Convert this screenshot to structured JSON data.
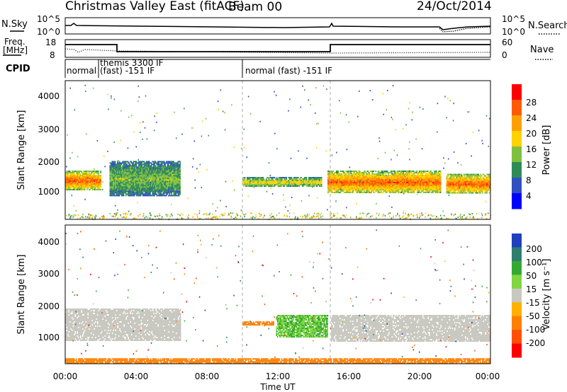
{
  "header": {
    "title": "Christmas Valley East (fitACF)",
    "beam": "Beam 00",
    "date": "24/Oct/2014"
  },
  "noise_panel": {
    "left_label": "N.Sky",
    "left_ticks": [
      "10^5",
      "10^0"
    ],
    "right_ticks": [
      "10^5",
      "10^0"
    ],
    "right_label": "N.Search"
  },
  "freq_panel": {
    "left_label_1": "Freq.",
    "left_label_2": "[MHz]",
    "left_ticks": [
      "18",
      "8"
    ],
    "right_ticks": [
      "60",
      "0"
    ],
    "right_label": "Nave"
  },
  "cpid_panel": {
    "label": "CPID",
    "segments": [
      {
        "start_hour": 0.0,
        "text_1": "normal",
        "text_2": ""
      },
      {
        "start_hour": 1.85,
        "text_1": "themis 3300 IF",
        "text_2": "(fast) -151 IF"
      },
      {
        "start_hour": 10.0,
        "text_1": "normal (fast) -151 IF",
        "text_2": ""
      }
    ]
  },
  "power_panel": {
    "ylabel": "Slant Range [km]",
    "yticks": [
      "4000",
      "3000",
      "2000",
      "1000"
    ],
    "colorbar_label": "Power [dB]",
    "colorbar_ticks": [
      "28",
      "24",
      "20",
      "16",
      "12",
      "8",
      "4"
    ],
    "colorbar_colors": [
      "#ff0000",
      "#ff5a00",
      "#ffa000",
      "#ffd200",
      "#80c040",
      "#2e8b57",
      "#3050c0",
      "#0000ff"
    ]
  },
  "velocity_panel": {
    "ylabel": "Slant Range [km]",
    "yticks": [
      "4000",
      "3000",
      "2000",
      "1000"
    ],
    "colorbar_label": "Velocity [m s⁻¹]",
    "colorbar_ticks": [
      "200",
      "100",
      "50",
      "15",
      "-15",
      "-50",
      "-100",
      "-200"
    ],
    "colorbar_colors": [
      "#2040c0",
      "#2e7d6e",
      "#34a834",
      "#7fd640",
      "#c8c8c0",
      "#ffb000",
      "#ff8000",
      "#ff5000",
      "#ff0000"
    ]
  },
  "xaxis": {
    "label": "Time UT",
    "ticks": [
      "00:00",
      "04:00",
      "08:00",
      "12:00",
      "16:00",
      "20:00",
      "00:00"
    ]
  },
  "chart_data": {
    "type": "heatmap",
    "x_range_hours": [
      0,
      24
    ],
    "y_range_km": [
      180,
      4500
    ],
    "power_bands": [
      {
        "start_hour": 0.0,
        "end_hour": 2.0,
        "range_km": [
          1100,
          1700
        ],
        "power_db": 24
      },
      {
        "start_hour": 2.5,
        "end_hour": 6.5,
        "range_km": [
          900,
          2000
        ],
        "power_db": 12
      },
      {
        "start_hour": 10.0,
        "end_hour": 14.5,
        "range_km": [
          1200,
          1500
        ],
        "power_db": 16
      },
      {
        "start_hour": 14.8,
        "end_hour": 21.2,
        "range_km": [
          1000,
          1700
        ],
        "power_db": 24
      },
      {
        "start_hour": 21.5,
        "end_hour": 24.0,
        "range_km": [
          1000,
          1600
        ],
        "power_db": 24
      }
    ],
    "velocity_bands": [
      {
        "start_hour": 0.0,
        "end_hour": 6.5,
        "range_km": [
          900,
          1900
        ],
        "velocity_ms": 0
      },
      {
        "start_hour": 10.0,
        "end_hour": 11.8,
        "range_km": [
          1400,
          1500
        ],
        "velocity_ms": -60
      },
      {
        "start_hour": 11.9,
        "end_hour": 14.8,
        "range_km": [
          1000,
          1700
        ],
        "velocity_ms": 30
      },
      {
        "start_hour": 15.0,
        "end_hour": 24.0,
        "range_km": [
          900,
          1700
        ],
        "velocity_ms": 0
      },
      {
        "start_hour": 0.0,
        "end_hour": 24.0,
        "range_km": [
          180,
          350
        ],
        "velocity_ms": -60
      }
    ],
    "frequency_mhz": [
      {
        "start_hour": 0.0,
        "end_hour": 2.9,
        "value": 12.0
      },
      {
        "start_hour": 2.9,
        "end_hour": 14.8,
        "value": 9.4
      },
      {
        "start_hour": 14.8,
        "end_hour": 24.0,
        "value": 12.0
      }
    ]
  }
}
